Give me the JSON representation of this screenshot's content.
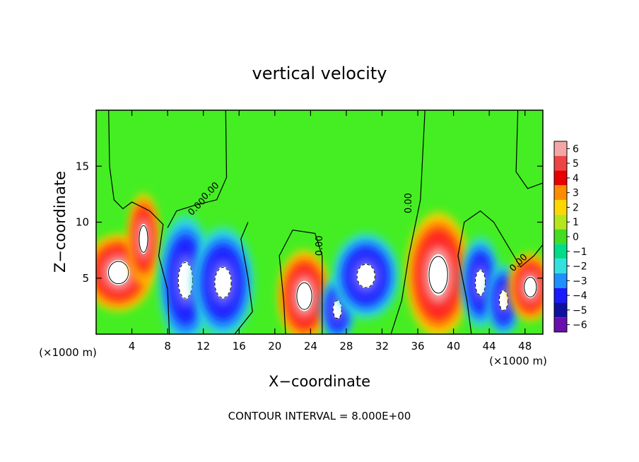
{
  "chart_data": {
    "type": "heatmap",
    "title": "vertical velocity",
    "xlabel": "X−coordinate",
    "ylabel": "Z−coordinate",
    "x_unit_left": "(×1000 m)",
    "x_unit_right": "(×1000 m)",
    "xlim": [
      0,
      50
    ],
    "ylim": [
      0,
      20
    ],
    "xticks": [
      4,
      8,
      12,
      16,
      20,
      24,
      28,
      32,
      36,
      40,
      44,
      48
    ],
    "yticks": [
      5,
      10,
      15
    ],
    "footer": "CONTOUR INTERVAL = 8.000E+00",
    "contour_labels": [
      "0.00",
      "0.00",
      "0.00",
      "0.00",
      "0.00"
    ],
    "colorbar": {
      "labels": [
        "6",
        "5",
        "4",
        "3",
        "2",
        "1",
        "0",
        "−1",
        "−2",
        "−3",
        "−4",
        "−5",
        "−6"
      ],
      "colors": [
        "#f4a6a6",
        "#ee4444",
        "#e80000",
        "#ff8c00",
        "#ffd700",
        "#b5e61d",
        "#44dd22",
        "#00dd88",
        "#33e0e0",
        "#1e90ff",
        "#1a1aff",
        "#1010a0",
        "#6a0dad"
      ]
    },
    "background_color": "#44ee22",
    "updraft_color": "#ff2020",
    "downdraft_color": "#1a1aff",
    "features": [
      {
        "kind": "updraft",
        "x": 2.5,
        "z": 5.5,
        "rx": 2.8,
        "rz": 2.5,
        "peak": 6
      },
      {
        "kind": "updraft",
        "x": 5.3,
        "z": 8.5,
        "rx": 1.2,
        "rz": 3.0,
        "peak": 6
      },
      {
        "kind": "downdraft",
        "x": 10.0,
        "z": 4.8,
        "rx": 2.0,
        "rz": 4.0,
        "peak": -6
      },
      {
        "kind": "downdraft",
        "x": 14.2,
        "z": 4.6,
        "rx": 2.3,
        "rz": 3.4,
        "peak": -6
      },
      {
        "kind": "updraft",
        "x": 23.3,
        "z": 3.4,
        "rx": 2.1,
        "rz": 3.0,
        "peak": 6
      },
      {
        "kind": "downdraft",
        "x": 27.0,
        "z": 2.2,
        "rx": 1.2,
        "rz": 2.0,
        "peak": -5
      },
      {
        "kind": "downdraft",
        "x": 30.2,
        "z": 5.2,
        "rx": 2.5,
        "rz": 2.6,
        "peak": -6
      },
      {
        "kind": "updraft",
        "x": 38.3,
        "z": 5.3,
        "rx": 2.6,
        "rz": 4.1,
        "peak": 6
      },
      {
        "kind": "downdraft",
        "x": 43.0,
        "z": 4.6,
        "rx": 1.4,
        "rz": 2.8,
        "peak": -5
      },
      {
        "kind": "downdraft",
        "x": 45.6,
        "z": 3.0,
        "rx": 1.2,
        "rz": 2.2,
        "peak": -5
      },
      {
        "kind": "updraft",
        "x": 48.6,
        "z": 4.2,
        "rx": 1.7,
        "rz": 2.2,
        "peak": 6
      }
    ]
  }
}
